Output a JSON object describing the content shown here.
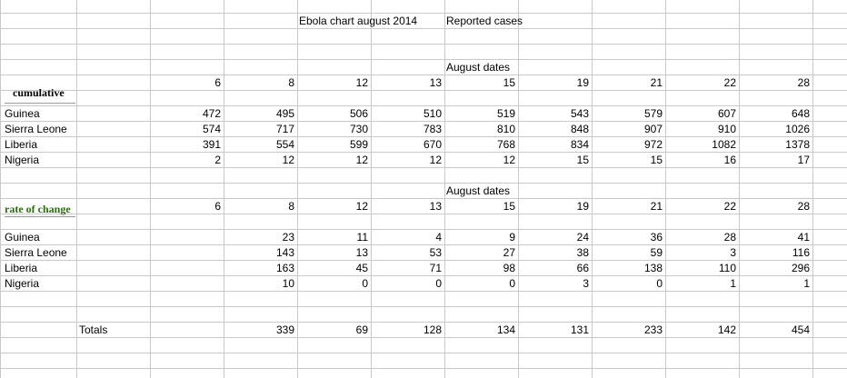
{
  "title": "Ebola chart august 2014",
  "subtitle": "Reported cases",
  "section_cumulative": "cumulative",
  "section_rate": "rate of change",
  "date_caption": "August dates",
  "dates": [
    "6",
    "8",
    "12",
    "13",
    "15",
    "19",
    "21",
    "22",
    "28"
  ],
  "countries": [
    "Guinea",
    "Sierra Leone",
    "Liberia",
    "Nigeria"
  ],
  "cumulative_rows": [
    [
      "472",
      "495",
      "506",
      "510",
      "519",
      "543",
      "579",
      "607",
      "648"
    ],
    [
      "574",
      "717",
      "730",
      "783",
      "810",
      "848",
      "907",
      "910",
      "1026"
    ],
    [
      "391",
      "554",
      "599",
      "670",
      "768",
      "834",
      "972",
      "1082",
      "1378"
    ],
    [
      "2",
      "12",
      "12",
      "12",
      "12",
      "15",
      "15",
      "16",
      "17"
    ]
  ],
  "rate_rows": [
    [
      "",
      "23",
      "11",
      "4",
      "9",
      "24",
      "36",
      "28",
      "41"
    ],
    [
      "",
      "143",
      "13",
      "53",
      "27",
      "38",
      "59",
      "3",
      "116"
    ],
    [
      "",
      "163",
      "45",
      "71",
      "98",
      "66",
      "138",
      "110",
      "296"
    ],
    [
      "",
      "10",
      "0",
      "0",
      "0",
      "3",
      "0",
      "1",
      "1"
    ]
  ],
  "totals_label": "Totals",
  "totals": [
    "",
    "339",
    "69",
    "128",
    "134",
    "131",
    "233",
    "142",
    "454"
  ],
  "colors": {
    "grid": "#c9c9c9",
    "rate_label": "#2b6b10"
  }
}
